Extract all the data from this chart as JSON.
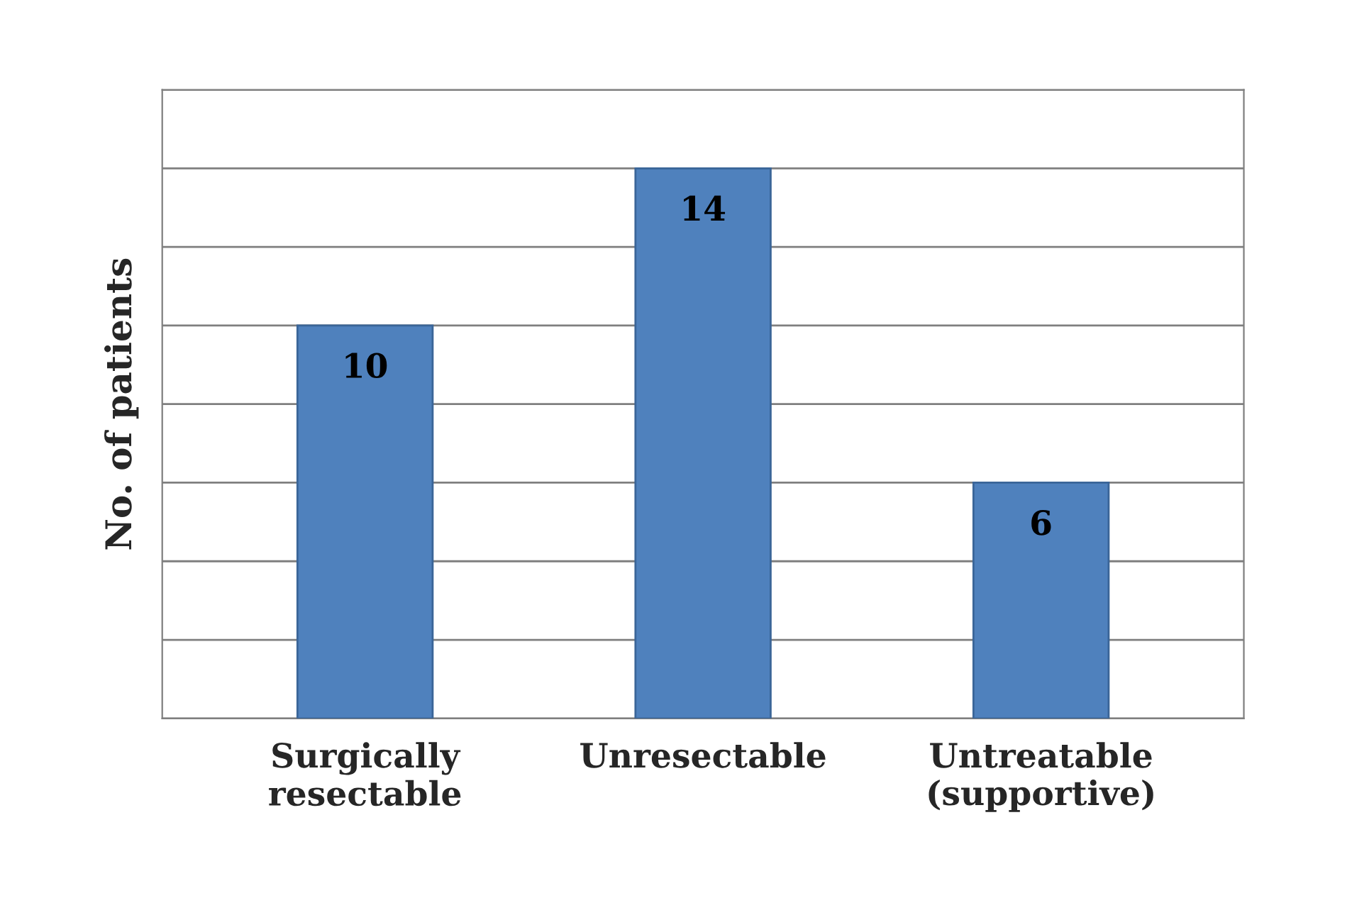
{
  "chart_data": {
    "type": "bar",
    "ylabel": "No. of patients",
    "categories": [
      "Surgically\nresectable",
      "Unresectable",
      "Untreatable\n(supportive)"
    ],
    "values": [
      10,
      14,
      6
    ],
    "color": "#4f81bd",
    "data_labels": true,
    "ylim": [
      0,
      16
    ],
    "yticks": [
      {
        "value": 0,
        "label": null
      },
      {
        "value": 2,
        "label": null
      },
      {
        "value": 4,
        "label": null
      },
      {
        "value": 6,
        "label": null
      },
      {
        "value": 8,
        "label": null
      },
      {
        "value": 10,
        "label": null
      },
      {
        "value": 12,
        "label": null
      },
      {
        "value": 14,
        "label": null
      },
      {
        "value": 16,
        "label": null
      }
    ],
    "grid": "y",
    "tick_labels": "x"
  }
}
